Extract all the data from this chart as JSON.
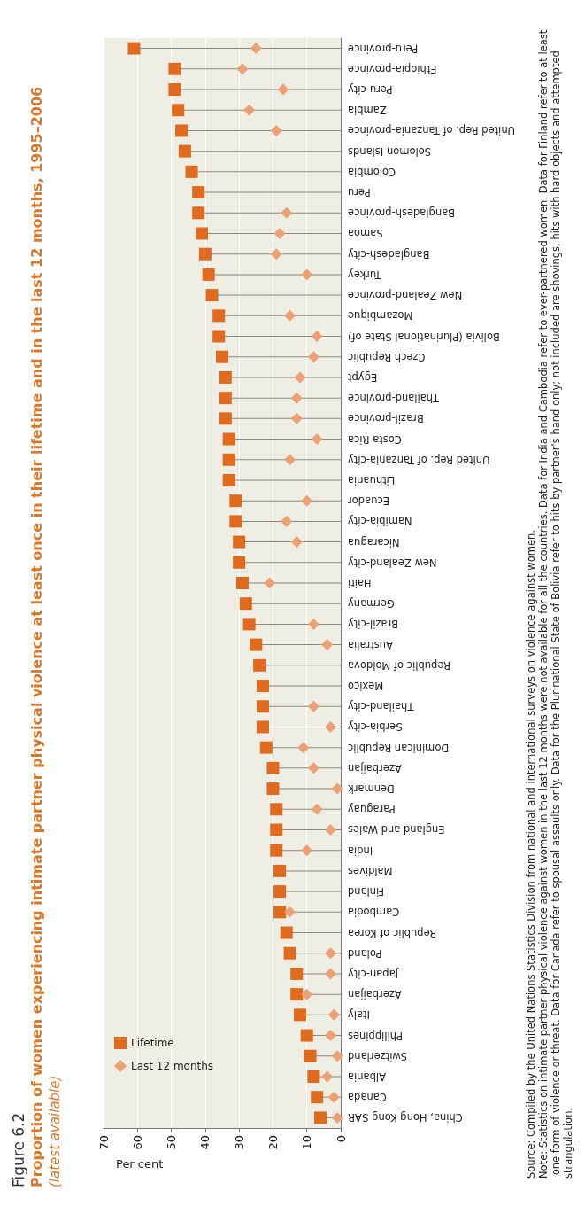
{
  "chart_data": {
    "type": "lollipop",
    "title": "Proportion of women experiencing intimate partner physical violence at least once in their lifetime and in the last 12 months, 1995–2006",
    "subtitle": "(latest available)",
    "xlabel": "Per cent",
    "annotations": [
      "Figure 6.2",
      "Source: Compiled by the United Nations Statistics Division from national and international surveys on violence against women.",
      "Note: Statistics on intimate partner physical violence against women in the last 12 months were not available for all the countries. Data for India and Cambodia refer to ever-partnered women. Data for Finland refer to at least one form of violence or threat. Data for Canada refer to spousal assaults only. Data for the Plurinational State of Bolivia refer to hits by partner's hand only; not included are shovings, hits with hard objects and attempted strangulation."
    ],
    "orientation": "horizontal",
    "categories": [
      "Peru-province",
      "Ethiopia-province",
      "Peru-city",
      "Zambia",
      "United Rep. of Tanzania-province",
      "Solomon Islands",
      "Colombia",
      "Peru",
      "Bangladesh-province",
      "Samoa",
      "Bangladesh-city",
      "Turkey",
      "New Zealand-province",
      "Mozambique",
      "Bolivia (Plurinational State of)",
      "Czech Republic",
      "Egypt",
      "Thailand-province",
      "Brazil-province",
      "Costa Rica",
      "United Rep. of Tanzania-city",
      "Lithuania",
      "Ecuador",
      "Namibia-city",
      "Nicaragua",
      "New Zealand-city",
      "Haiti",
      "Germany",
      "Brazil-city",
      "Australia",
      "Republic of Moldova",
      "Mexico",
      "Thailand-city",
      "Serbia-city",
      "Dominican Republic",
      "Azerbaijan",
      "Denmark",
      "Paraguay",
      "England and Wales",
      "India",
      "Maldives",
      "Finland",
      "Cambodia",
      "Republic of Korea",
      "Poland",
      "Japan-city",
      "Azerbaijan",
      "Italy",
      "Philippines",
      "Switzerland",
      "Albania",
      "Canada",
      "China, Hong Kong SAR"
    ],
    "series": [
      {
        "name": "Lifetime",
        "color": "#e06a1e",
        "marker": "square",
        "values": [
          61,
          49,
          49,
          48,
          47,
          46,
          44,
          42,
          42,
          41,
          40,
          39,
          38,
          36,
          36,
          35,
          34,
          34,
          34,
          33,
          33,
          33,
          31,
          31,
          30,
          30,
          29,
          28,
          27,
          25,
          24,
          23,
          23,
          23,
          22,
          20,
          20,
          19,
          19,
          19,
          18,
          18,
          18,
          16,
          15,
          13,
          13,
          12,
          10,
          9,
          8,
          7,
          6
        ]
      },
      {
        "name": "Last 12 months",
        "color": "#eba173",
        "marker": "diamond",
        "values": [
          25,
          29,
          17,
          27,
          19,
          null,
          null,
          null,
          16,
          18,
          19,
          10,
          null,
          15,
          7,
          8,
          12,
          13,
          13,
          7,
          15,
          null,
          10,
          16,
          13,
          null,
          21,
          null,
          8,
          4,
          null,
          null,
          8,
          3,
          11,
          8,
          1,
          7,
          3,
          10,
          null,
          null,
          15,
          null,
          3,
          3,
          10,
          2,
          3,
          1,
          4,
          2,
          1
        ]
      }
    ],
    "xlim": [
      70,
      0
    ],
    "xticks": [
      70,
      60,
      50,
      40,
      30,
      20,
      10,
      0
    ],
    "grid": "x",
    "legend": "bottom left"
  }
}
